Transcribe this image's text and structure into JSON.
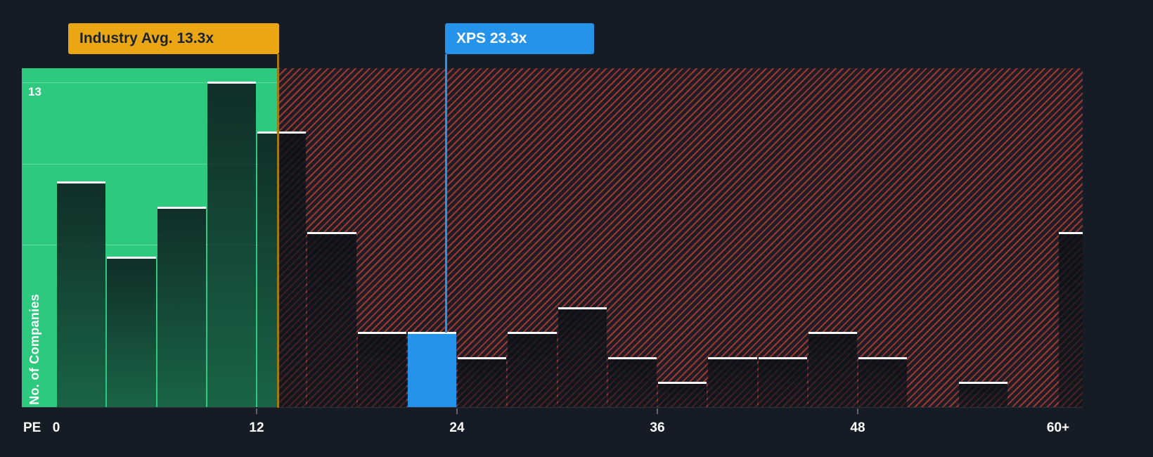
{
  "colors": {
    "background": "#151c25",
    "green_zone": "#2dc97e",
    "hatch_stripe": "#ef4a3c",
    "highlight_blue": "#2693ea",
    "avg_yellow": "#eba713",
    "avg_line": "#a2790e",
    "bar_cap": "#f8f9fa",
    "text_light": "#ffffff",
    "text_dark": "#1b2430"
  },
  "annotations": {
    "industry_avg": {
      "label": "Industry Avg. 13.3x",
      "value": 13.3
    },
    "company": {
      "label": "XPS 23.3x",
      "value": 23.3
    }
  },
  "axes": {
    "x_title": "PE",
    "y_title": "No. of Companies",
    "x_ticks": [
      "0",
      "12",
      "24",
      "36",
      "48",
      "60+"
    ],
    "y_max_label": "13"
  },
  "chart_data": {
    "type": "bar",
    "title": "",
    "xlabel": "PE",
    "ylabel": "No. of Companies",
    "x_tick_labels": [
      "0",
      "12",
      "24",
      "36",
      "48",
      "60+"
    ],
    "ylim": [
      0,
      13.6
    ],
    "y_max_gridline": 13,
    "bin_width": 3,
    "industry_avg": 13.3,
    "company_value": 23.3,
    "company_label": "XPS",
    "green_region_up_to_x": 13.3,
    "hatched_region_from_x": 13.3,
    "bins": [
      {
        "range": [
          0,
          3
        ],
        "count": 9
      },
      {
        "range": [
          3,
          6
        ],
        "count": 6
      },
      {
        "range": [
          6,
          9
        ],
        "count": 8
      },
      {
        "range": [
          9,
          12
        ],
        "count": 13
      },
      {
        "range": [
          12,
          15
        ],
        "count": 11
      },
      {
        "range": [
          15,
          18
        ],
        "count": 7
      },
      {
        "range": [
          18,
          21
        ],
        "count": 3
      },
      {
        "range": [
          21,
          24
        ],
        "count": 3,
        "highlight": true
      },
      {
        "range": [
          24,
          27
        ],
        "count": 2
      },
      {
        "range": [
          27,
          30
        ],
        "count": 3
      },
      {
        "range": [
          30,
          33
        ],
        "count": 4
      },
      {
        "range": [
          33,
          36
        ],
        "count": 2
      },
      {
        "range": [
          36,
          39
        ],
        "count": 1
      },
      {
        "range": [
          39,
          42
        ],
        "count": 2
      },
      {
        "range": [
          42,
          45
        ],
        "count": 2
      },
      {
        "range": [
          45,
          48
        ],
        "count": 3
      },
      {
        "range": [
          48,
          51
        ],
        "count": 2
      },
      {
        "range": [
          51,
          54
        ],
        "count": 0
      },
      {
        "range": [
          54,
          57
        ],
        "count": 1
      },
      {
        "range": [
          57,
          60
        ],
        "count": 0
      },
      {
        "range": [
          60,
          61.5
        ],
        "count": 7,
        "label": "60+"
      }
    ]
  }
}
